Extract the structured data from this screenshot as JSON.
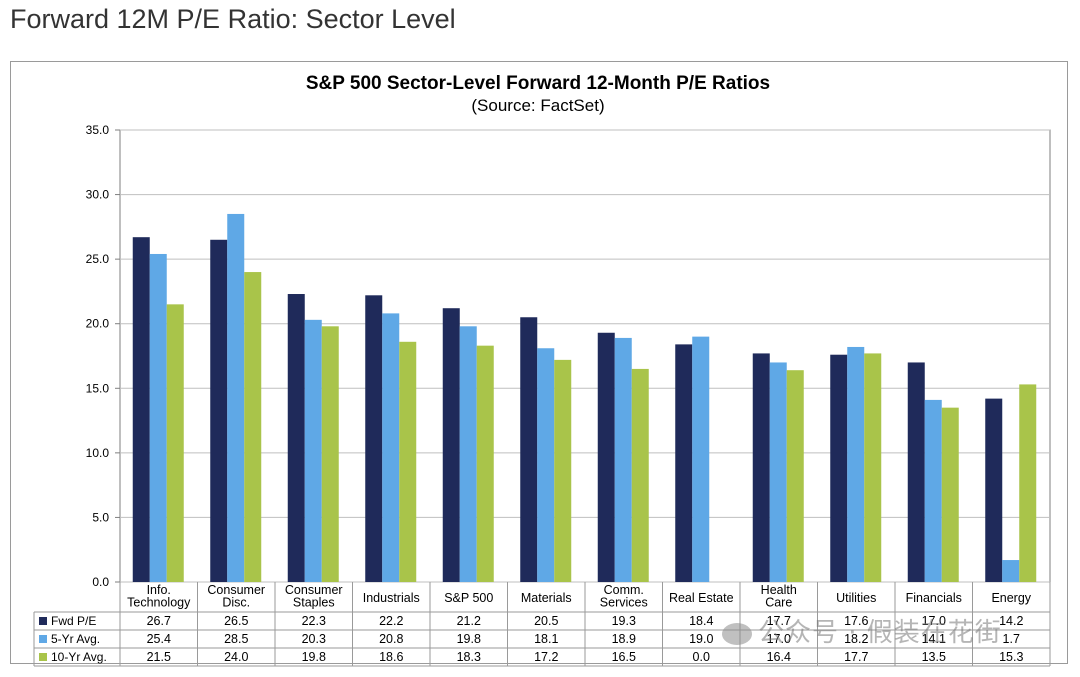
{
  "page": {
    "heading": "Forward 12M P/E Ratio: Sector Level",
    "watermark": "公众号 · 假装在花街"
  },
  "colors": {
    "fwd_pe": "#1f2a5a",
    "five_yr": "#5fa8e6",
    "ten_yr": "#a9c44a",
    "grid": "#bfbfbf",
    "axis": "#7f7f7f"
  },
  "chart_data": {
    "type": "bar",
    "title": "S&P 500 Sector-Level Forward 12-Month P/E Ratios",
    "subtitle": "(Source: FactSet)",
    "xlabel": "",
    "ylabel": "",
    "ylim": [
      0,
      35
    ],
    "yticks": [
      "0.0",
      "5.0",
      "10.0",
      "15.0",
      "20.0",
      "25.0",
      "30.0",
      "35.0"
    ],
    "grid": true,
    "legend": "data-table-left",
    "categories": [
      [
        "Info.",
        "Technology"
      ],
      [
        "Consumer",
        "Disc."
      ],
      [
        "Consumer",
        "Staples"
      ],
      [
        "Industrials"
      ],
      [
        "S&P 500"
      ],
      [
        "Materials"
      ],
      [
        "Comm.",
        "Services"
      ],
      [
        "Real Estate"
      ],
      [
        "Health",
        "Care"
      ],
      [
        "Utilities"
      ],
      [
        "Financials"
      ],
      [
        "Energy"
      ]
    ],
    "series": [
      {
        "name": "Fwd P/E",
        "color": "#1f2a5a",
        "values": [
          26.7,
          26.5,
          22.3,
          22.2,
          21.2,
          20.5,
          19.3,
          18.4,
          17.7,
          17.6,
          17.0,
          14.2
        ]
      },
      {
        "name": "5-Yr Avg.",
        "color": "#5fa8e6",
        "values": [
          25.4,
          28.5,
          20.3,
          20.8,
          19.8,
          18.1,
          18.9,
          19.0,
          17.0,
          18.2,
          14.1,
          1.7
        ]
      },
      {
        "name": "10-Yr Avg.",
        "color": "#a9c44a",
        "values": [
          21.5,
          24.0,
          19.8,
          18.6,
          18.3,
          17.2,
          16.5,
          0.0,
          16.4,
          17.7,
          13.5,
          15.3
        ]
      }
    ]
  }
}
